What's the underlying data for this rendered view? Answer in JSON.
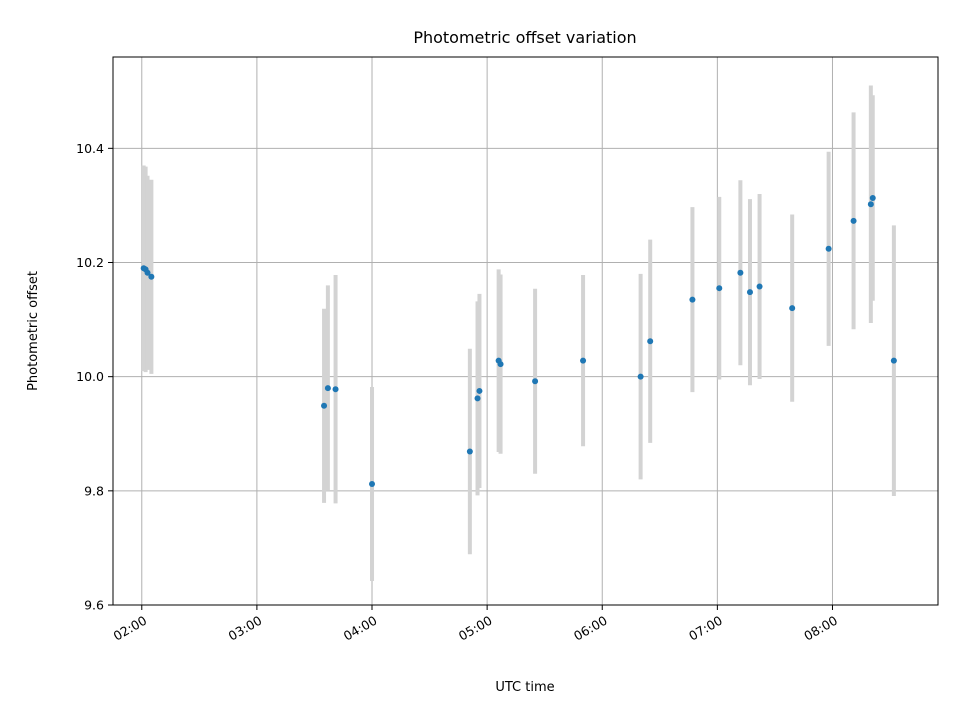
{
  "chart_data": {
    "type": "scatter",
    "title": "Photometric offset variation",
    "xlabel": "UTC time",
    "ylabel": "Photometric offset",
    "ylim": [
      9.6,
      10.56
    ],
    "xlim": [
      "01:45",
      "08:55"
    ],
    "x_ticks": [
      "02:00",
      "03:00",
      "04:00",
      "05:00",
      "06:00",
      "07:00",
      "08:00"
    ],
    "y_ticks": [
      9.6,
      9.8,
      10.0,
      10.2,
      10.4
    ],
    "grid": true,
    "colors": {
      "point": "#1f77b4",
      "errorbar": "#d3d3d3",
      "grid": "#b0b0b0"
    },
    "points": [
      {
        "x": "02:01",
        "y": 10.19,
        "err": 0.18
      },
      {
        "x": "02:02",
        "y": 10.188,
        "err": 0.18
      },
      {
        "x": "02:03",
        "y": 10.182,
        "err": 0.17
      },
      {
        "x": "02:05",
        "y": 10.175,
        "err": 0.17
      },
      {
        "x": "03:35",
        "y": 9.949,
        "err": 0.17
      },
      {
        "x": "03:37",
        "y": 9.98,
        "err": 0.18
      },
      {
        "x": "03:41",
        "y": 9.978,
        "err": 0.2
      },
      {
        "x": "04:00",
        "y": 9.812,
        "err": 0.17
      },
      {
        "x": "04:51",
        "y": 9.869,
        "err": 0.18
      },
      {
        "x": "04:55",
        "y": 9.962,
        "err": 0.17
      },
      {
        "x": "04:56",
        "y": 9.975,
        "err": 0.17
      },
      {
        "x": "05:06",
        "y": 10.028,
        "err": 0.16
      },
      {
        "x": "05:07",
        "y": 10.022,
        "err": 0.157
      },
      {
        "x": "05:25",
        "y": 9.992,
        "err": 0.162
      },
      {
        "x": "05:50",
        "y": 10.028,
        "err": 0.15
      },
      {
        "x": "06:20",
        "y": 10.0,
        "err": 0.18
      },
      {
        "x": "06:25",
        "y": 10.062,
        "err": 0.178
      },
      {
        "x": "06:47",
        "y": 10.135,
        "err": 0.162
      },
      {
        "x": "07:01",
        "y": 10.155,
        "err": 0.16
      },
      {
        "x": "07:12",
        "y": 10.182,
        "err": 0.162
      },
      {
        "x": "07:17",
        "y": 10.148,
        "err": 0.163
      },
      {
        "x": "07:22",
        "y": 10.158,
        "err": 0.162
      },
      {
        "x": "07:39",
        "y": 10.12,
        "err": 0.164
      },
      {
        "x": "07:58",
        "y": 10.224,
        "err": 0.17
      },
      {
        "x": "08:11",
        "y": 10.273,
        "err": 0.19
      },
      {
        "x": "08:20",
        "y": 10.302,
        "err": 0.208
      },
      {
        "x": "08:21",
        "y": 10.313,
        "err": 0.18
      },
      {
        "x": "08:32",
        "y": 10.028,
        "err": 0.237
      }
    ]
  }
}
